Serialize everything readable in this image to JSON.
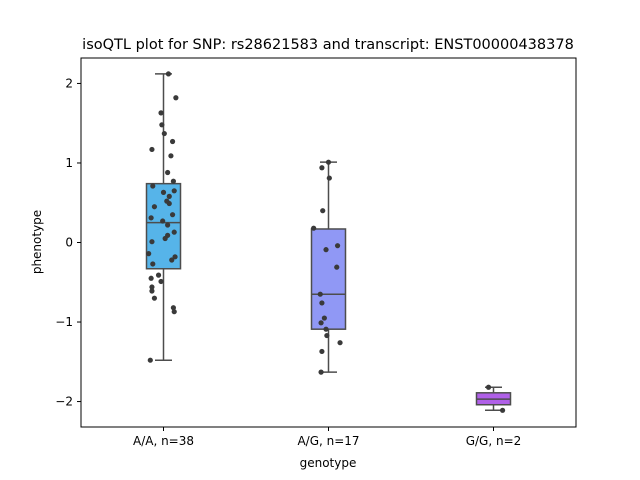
{
  "chart_data": {
    "type": "box",
    "title": "isoQTL plot for SNP: rs28621583 and transcript: ENST00000438378",
    "xlabel": "genotype",
    "ylabel": "phenotype",
    "ylim": [
      -2.32,
      2.32
    ],
    "yticks": [
      -2,
      -1,
      0,
      1,
      2
    ],
    "grid": false,
    "categories": [
      "A/A, n=38",
      "A/G, n=17",
      "G/G, n=2"
    ],
    "colors": [
      "#56b4e9",
      "#9098f5",
      "#b060e8"
    ],
    "point_color": "#3a3a3a",
    "boxes": [
      {
        "q1": -0.33,
        "median": 0.25,
        "q3": 0.74,
        "whisker_low": -1.48,
        "whisker_high": 2.12
      },
      {
        "q1": -1.09,
        "median": -0.65,
        "q3": 0.17,
        "whisker_low": -1.63,
        "whisker_high": 1.01
      },
      {
        "q1": -2.04,
        "median": -1.97,
        "q3": -1.89,
        "whisker_low": -2.11,
        "whisker_high": -1.82
      }
    ],
    "points": [
      [
        {
          "dx": 0.06,
          "y": 2.12
        },
        {
          "dx": 0.15,
          "y": 1.82
        },
        {
          "dx": -0.03,
          "y": 1.63
        },
        {
          "dx": -0.02,
          "y": 1.48
        },
        {
          "dx": 0.01,
          "y": 1.37
        },
        {
          "dx": 0.11,
          "y": 1.27
        },
        {
          "dx": -0.14,
          "y": 1.17
        },
        {
          "dx": 0.09,
          "y": 1.09
        },
        {
          "dx": 0.05,
          "y": 0.88
        },
        {
          "dx": 0.12,
          "y": 0.77
        },
        {
          "dx": -0.13,
          "y": 0.71
        },
        {
          "dx": 0.13,
          "y": 0.65
        },
        {
          "dx": 0.07,
          "y": 0.58
        },
        {
          "dx": 0.04,
          "y": 0.52
        },
        {
          "dx": -0.11,
          "y": 0.45
        },
        {
          "dx": 0.11,
          "y": 0.35
        },
        {
          "dx": -0.15,
          "y": 0.31
        },
        {
          "dx": -0.01,
          "y": 0.27
        },
        {
          "dx": 0.05,
          "y": 0.22
        },
        {
          "dx": 0.13,
          "y": 0.13
        },
        {
          "dx": 0.05,
          "y": 0.09
        },
        {
          "dx": 0.02,
          "y": 0.05
        },
        {
          "dx": -0.14,
          "y": 0.01
        },
        {
          "dx": -0.18,
          "y": -0.14
        },
        {
          "dx": 0.14,
          "y": -0.18
        },
        {
          "dx": 0.1,
          "y": -0.22
        },
        {
          "dx": -0.13,
          "y": -0.27
        },
        {
          "dx": -0.06,
          "y": -0.41
        },
        {
          "dx": -0.15,
          "y": -0.45
        },
        {
          "dx": -0.03,
          "y": -0.49
        },
        {
          "dx": -0.14,
          "y": -0.56
        },
        {
          "dx": -0.14,
          "y": -0.61
        },
        {
          "dx": -0.11,
          "y": -0.7
        },
        {
          "dx": 0.12,
          "y": -0.82
        },
        {
          "dx": 0.13,
          "y": -0.87
        },
        {
          "dx": -0.16,
          "y": -1.48
        },
        {
          "dx": 0.0,
          "y": 0.63
        },
        {
          "dx": 0.07,
          "y": 0.49
        }
      ],
      [
        {
          "dx": 0.0,
          "y": 1.01
        },
        {
          "dx": -0.08,
          "y": 0.94
        },
        {
          "dx": 0.01,
          "y": 0.81
        },
        {
          "dx": -0.07,
          "y": 0.4
        },
        {
          "dx": -0.18,
          "y": 0.18
        },
        {
          "dx": 0.11,
          "y": -0.04
        },
        {
          "dx": -0.03,
          "y": -0.09
        },
        {
          "dx": 0.1,
          "y": -0.31
        },
        {
          "dx": -0.1,
          "y": -0.65
        },
        {
          "dx": -0.08,
          "y": -0.76
        },
        {
          "dx": -0.05,
          "y": -0.95
        },
        {
          "dx": -0.09,
          "y": -1.01
        },
        {
          "dx": -0.03,
          "y": -1.09
        },
        {
          "dx": -0.02,
          "y": -1.17
        },
        {
          "dx": 0.14,
          "y": -1.26
        },
        {
          "dx": -0.08,
          "y": -1.37
        },
        {
          "dx": -0.09,
          "y": -1.63
        }
      ],
      [
        {
          "dx": -0.06,
          "y": -1.82
        },
        {
          "dx": 0.11,
          "y": -2.11
        }
      ]
    ]
  }
}
